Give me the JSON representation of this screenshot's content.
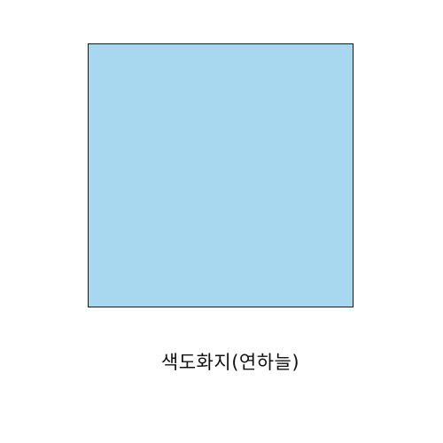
{
  "swatch": {
    "fill_color": "#a8d8f0",
    "border_color": "#1a1a1a"
  },
  "caption": {
    "text": "색도화지(연하늘)"
  }
}
